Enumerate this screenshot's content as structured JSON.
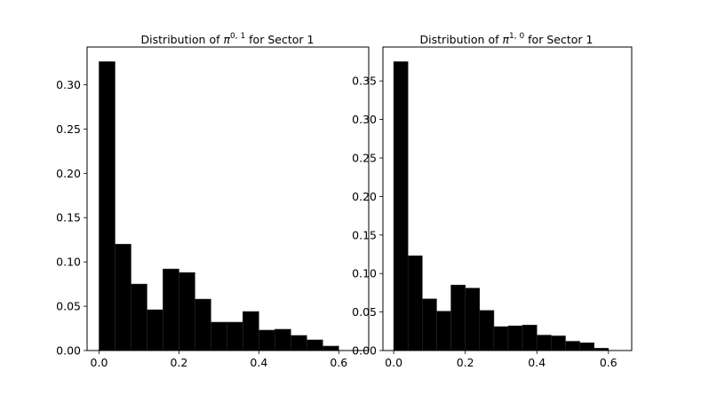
{
  "chart_data": [
    {
      "type": "bar",
      "title_parts": [
        "Distribution of ",
        "π",
        "0, 1",
        " for Sector 1"
      ],
      "xlabel": "",
      "ylabel": "",
      "bin_start": 0.0,
      "bin_width": 0.04,
      "values": [
        0.326,
        0.12,
        0.075,
        0.046,
        0.092,
        0.088,
        0.058,
        0.032,
        0.032,
        0.044,
        0.023,
        0.024,
        0.017,
        0.012,
        0.005
      ],
      "xlim": [
        -0.03,
        0.675
      ],
      "ylim": [
        0,
        0.3425
      ],
      "xticks": [
        "0.0",
        "0.2",
        "0.4",
        "0.6"
      ],
      "xtick_values": [
        0.0,
        0.2,
        0.4,
        0.6
      ],
      "yticks": [
        "0.00",
        "0.05",
        "0.10",
        "0.15",
        "0.20",
        "0.25",
        "0.30"
      ],
      "ytick_values": [
        0.0,
        0.05,
        0.1,
        0.15,
        0.2,
        0.25,
        0.3
      ],
      "grid": false,
      "bar_color": "#000000",
      "edge_color": "#2a2a2a"
    },
    {
      "type": "bar",
      "title_parts": [
        "Distribution of ",
        "π",
        "1, 0",
        " for Sector 1"
      ],
      "xlabel": "",
      "ylabel": "",
      "bin_start": 0.0,
      "bin_width": 0.04,
      "values": [
        0.375,
        0.123,
        0.067,
        0.051,
        0.085,
        0.081,
        0.052,
        0.031,
        0.032,
        0.033,
        0.02,
        0.019,
        0.012,
        0.01,
        0.003
      ],
      "xlim": [
        -0.03,
        0.665
      ],
      "ylim": [
        0,
        0.394
      ],
      "xticks": [
        "0.0",
        "0.2",
        "0.4",
        "0.6"
      ],
      "xtick_values": [
        0.0,
        0.2,
        0.4,
        0.6
      ],
      "yticks": [
        "0.00",
        "0.05",
        "0.10",
        "0.15",
        "0.20",
        "0.25",
        "0.30",
        "0.35"
      ],
      "ytick_values": [
        0.0,
        0.05,
        0.1,
        0.15,
        0.2,
        0.25,
        0.3,
        0.35
      ],
      "grid": false,
      "bar_color": "#000000",
      "edge_color": "#2a2a2a"
    }
  ]
}
